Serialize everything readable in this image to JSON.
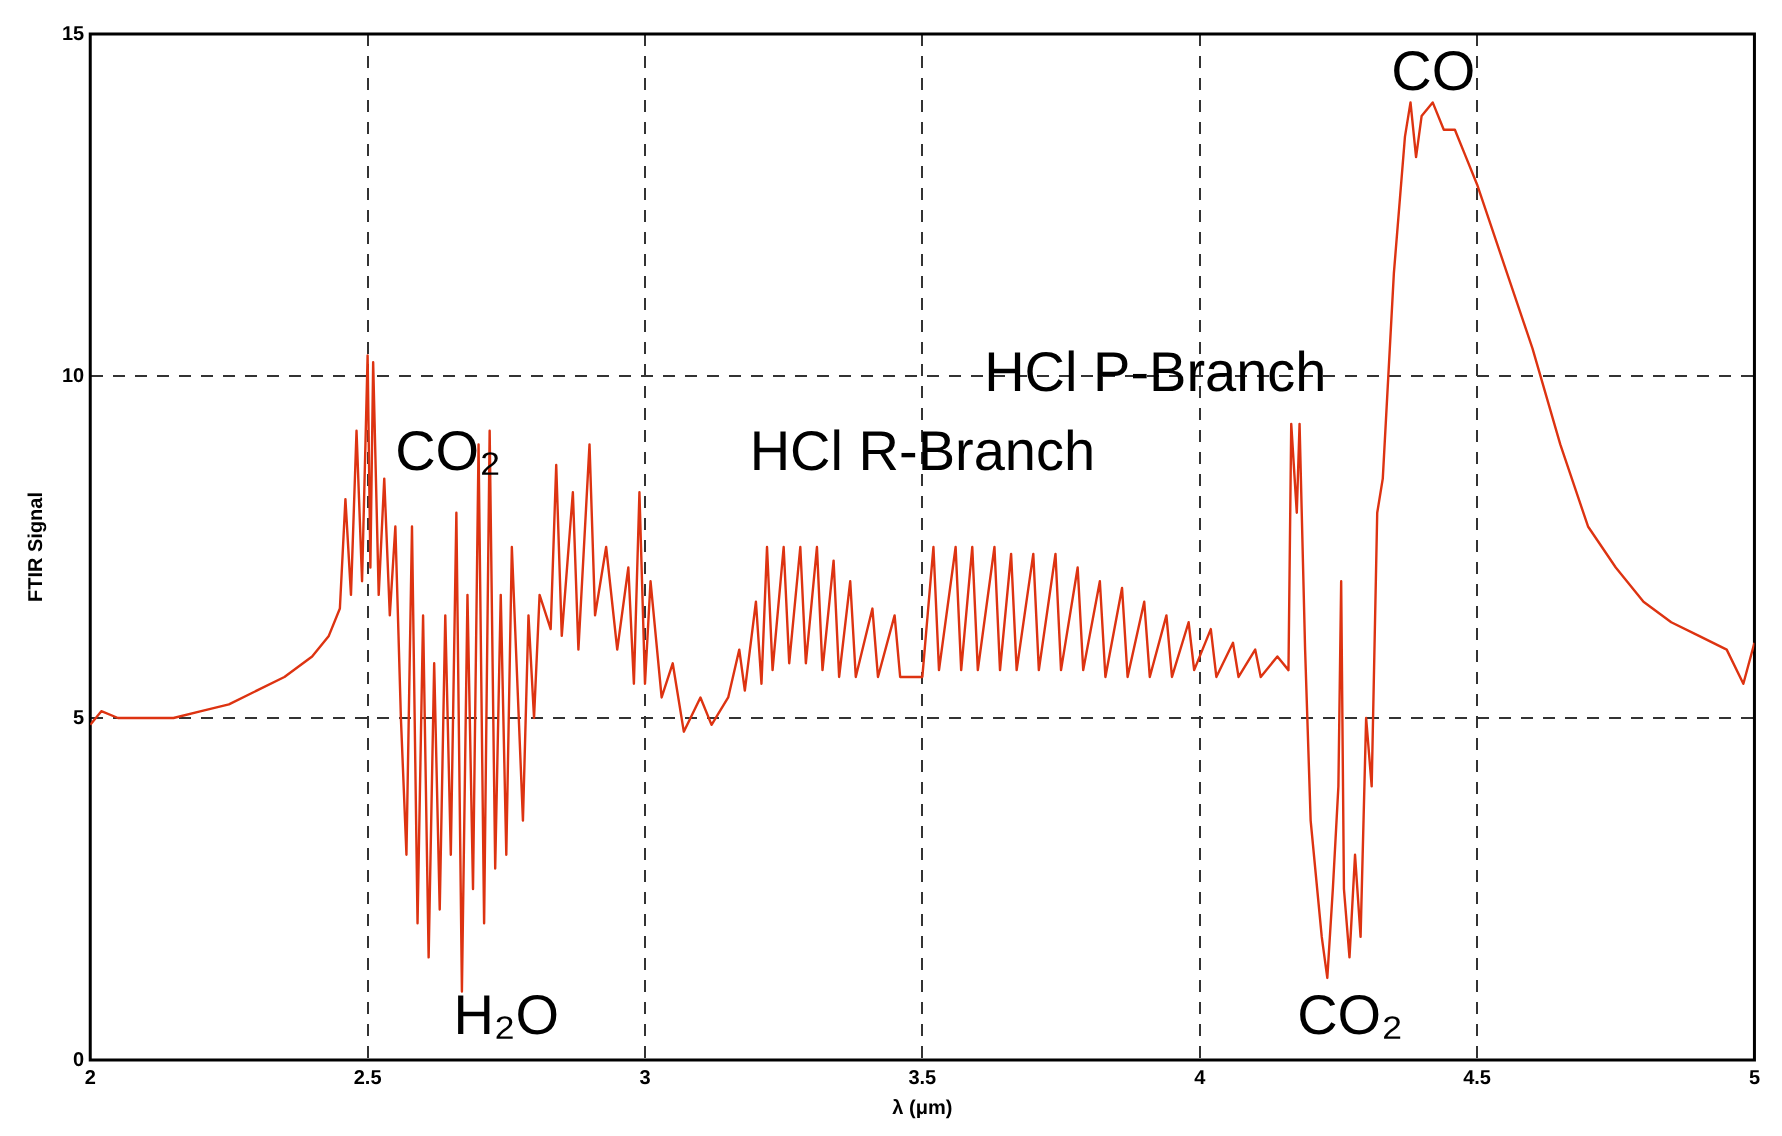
{
  "chart_data": {
    "type": "line",
    "xlabel": "λ (μm)",
    "ylabel": "FTIR Signal",
    "xlim": [
      2,
      5
    ],
    "xticks": [
      2,
      2.5,
      3,
      3.5,
      4,
      4.5,
      5
    ],
    "ylim": [
      0,
      15
    ],
    "yticks": [
      0,
      5,
      10,
      15
    ],
    "grid": true,
    "legend": false,
    "marker": "none",
    "line_style": "solid",
    "series": [
      {
        "color": "#dd3311",
        "x": [
          2.0,
          2.02,
          2.05,
          2.1,
          2.15,
          2.2,
          2.25,
          2.3,
          2.35,
          2.4,
          2.43,
          2.45,
          2.46,
          2.47,
          2.48,
          2.49,
          2.5,
          2.505,
          2.51,
          2.52,
          2.53,
          2.54,
          2.55,
          2.56,
          2.57,
          2.58,
          2.59,
          2.6,
          2.61,
          2.62,
          2.63,
          2.64,
          2.65,
          2.66,
          2.67,
          2.68,
          2.69,
          2.7,
          2.71,
          2.72,
          2.73,
          2.74,
          2.75,
          2.76,
          2.78,
          2.79,
          2.8,
          2.81,
          2.83,
          2.84,
          2.85,
          2.87,
          2.88,
          2.9,
          2.91,
          2.93,
          2.95,
          2.97,
          2.98,
          2.99,
          3.0,
          3.01,
          3.03,
          3.05,
          3.07,
          3.1,
          3.12,
          3.15,
          3.17,
          3.18,
          3.2,
          3.21,
          3.22,
          3.23,
          3.25,
          3.26,
          3.28,
          3.29,
          3.31,
          3.32,
          3.34,
          3.35,
          3.37,
          3.38,
          3.41,
          3.42,
          3.45,
          3.46,
          3.5,
          3.52,
          3.53,
          3.56,
          3.57,
          3.59,
          3.6,
          3.63,
          3.64,
          3.66,
          3.67,
          3.7,
          3.71,
          3.74,
          3.75,
          3.78,
          3.79,
          3.82,
          3.83,
          3.86,
          3.87,
          3.9,
          3.91,
          3.94,
          3.95,
          3.98,
          3.99,
          4.02,
          4.03,
          4.06,
          4.07,
          4.1,
          4.11,
          4.14,
          4.16,
          4.165,
          4.175,
          4.18,
          4.19,
          4.2,
          4.22,
          4.23,
          4.24,
          4.25,
          4.255,
          4.26,
          4.27,
          4.28,
          4.29,
          4.3,
          4.31,
          4.32,
          4.33,
          4.35,
          4.37,
          4.38,
          4.39,
          4.4,
          4.42,
          4.44,
          4.46,
          4.48,
          4.5,
          4.55,
          4.6,
          4.65,
          4.7,
          4.75,
          4.8,
          4.85,
          4.9,
          4.95,
          4.98,
          5.0
        ],
        "values": [
          4.9,
          5.1,
          5.0,
          5.0,
          5.0,
          5.1,
          5.2,
          5.4,
          5.6,
          5.9,
          6.2,
          6.6,
          8.2,
          6.8,
          9.2,
          7.0,
          10.3,
          7.2,
          10.2,
          6.8,
          8.5,
          6.5,
          7.8,
          5.0,
          3.0,
          7.8,
          2.0,
          6.5,
          1.5,
          5.8,
          2.2,
          6.5,
          3.0,
          8.0,
          1.0,
          6.8,
          2.5,
          9.0,
          2.0,
          9.2,
          2.8,
          6.8,
          3.0,
          7.5,
          3.5,
          6.5,
          5.0,
          6.8,
          6.3,
          8.7,
          6.2,
          8.3,
          6.0,
          9.0,
          6.5,
          7.5,
          6.0,
          7.2,
          5.5,
          8.3,
          5.5,
          7.0,
          5.3,
          5.8,
          4.8,
          5.3,
          4.9,
          5.3,
          6.0,
          5.4,
          6.7,
          5.5,
          7.5,
          5.7,
          7.5,
          5.8,
          7.5,
          5.8,
          7.5,
          5.7,
          7.3,
          5.6,
          7.0,
          5.6,
          6.6,
          5.6,
          6.5,
          5.6,
          5.6,
          7.5,
          5.7,
          7.5,
          5.7,
          7.5,
          5.7,
          7.5,
          5.7,
          7.4,
          5.7,
          7.4,
          5.7,
          7.4,
          5.7,
          7.2,
          5.7,
          7.0,
          5.6,
          6.9,
          5.6,
          6.7,
          5.6,
          6.5,
          5.6,
          6.4,
          5.7,
          6.3,
          5.6,
          6.1,
          5.6,
          6.0,
          5.6,
          5.9,
          5.7,
          9.3,
          8.0,
          9.3,
          6.0,
          3.5,
          1.8,
          1.2,
          2.5,
          4.0,
          7.0,
          2.5,
          1.5,
          3.0,
          1.8,
          5.0,
          4.0,
          8.0,
          8.5,
          11.5,
          13.5,
          14.0,
          13.2,
          13.8,
          14.0,
          13.6,
          13.6,
          13.2,
          12.8,
          11.6,
          10.4,
          9.0,
          7.8,
          7.2,
          6.7,
          6.4,
          6.2,
          6.0,
          5.5,
          6.1
        ]
      }
    ],
    "annotations": [
      "CO₂",
      "H₂O",
      "HCl R-Branch",
      "HCl P-Branch",
      "CO₂",
      "CO"
    ]
  }
}
